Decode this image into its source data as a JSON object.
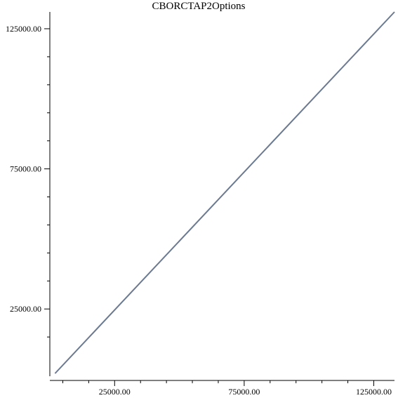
{
  "chart_data": {
    "type": "line",
    "title": "CBORCTAP2Options",
    "xlabel": "",
    "ylabel": "",
    "xlim": [
      0,
      133000
    ],
    "ylim": [
      1000,
      131000
    ],
    "x_ticks_major": [
      25000,
      75000,
      125000
    ],
    "x_tick_labels": [
      "25000.00",
      "75000.00",
      "125000.00"
    ],
    "x_ticks_minor": [
      5000,
      15000,
      35000,
      45000,
      55000,
      65000,
      85000,
      95000,
      105000,
      115000
    ],
    "y_ticks_major": [
      25000,
      75000,
      125000
    ],
    "y_tick_labels": [
      "25000.00",
      "75000.00",
      "125000.00"
    ],
    "y_ticks_minor": [
      15000,
      35000,
      45000,
      55000,
      65000,
      85000,
      95000,
      105000,
      115000
    ],
    "grid": false,
    "series": [
      {
        "color": "#6b7a90",
        "x": [
          2000,
          133000
        ],
        "y": [
          2000,
          131000
        ]
      }
    ]
  }
}
